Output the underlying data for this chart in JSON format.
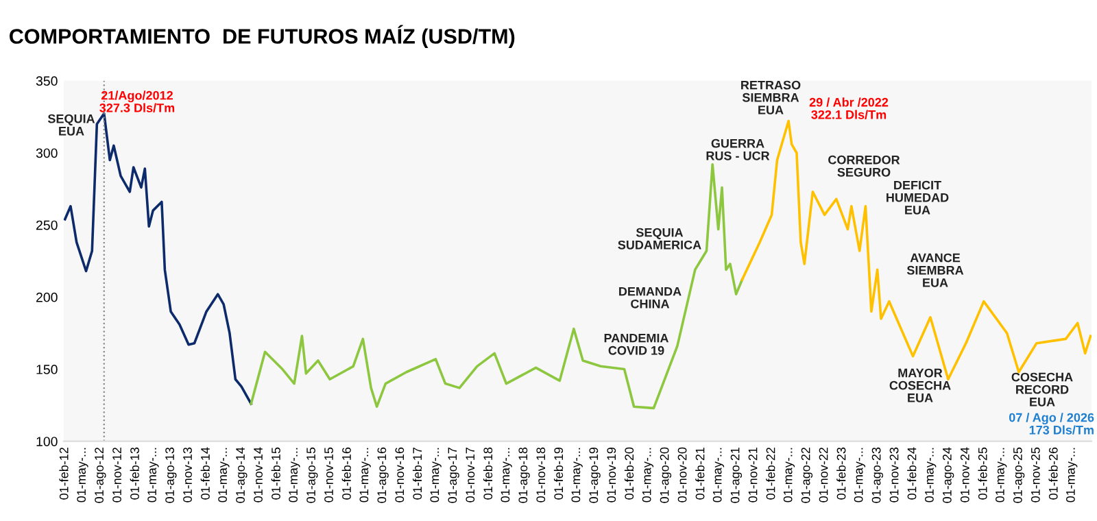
{
  "chart_data": {
    "type": "line",
    "title": "COMPORTAMIENTO  DE FUTUROS MAÍZ (USD/TM)",
    "series": [
      {
        "color": "#0d2a6b",
        "x": [
          "2012-02-01",
          "2012-03-01",
          "2012-04-01",
          "2012-05-20",
          "2012-06-20",
          "2012-07-15",
          "2012-08-21",
          "2012-09-20",
          "2012-10-10",
          "2012-11-15",
          "2013-01-01",
          "2013-01-20",
          "2013-03-01",
          "2013-03-20",
          "2013-04-10",
          "2013-05-01",
          "2013-06-15",
          "2013-07-01",
          "2013-08-01",
          "2013-09-15",
          "2013-11-01",
          "2013-12-01",
          "2014-02-01",
          "2014-04-01",
          "2014-05-01",
          "2014-06-01",
          "2014-07-01",
          "2014-08-01",
          "2014-09-20"
        ],
        "values": [
          254,
          263,
          238,
          218,
          232,
          320,
          327.3,
          295,
          305,
          284,
          273,
          290,
          276,
          289,
          249,
          260,
          266,
          219,
          190,
          181,
          167,
          168,
          190,
          202,
          195,
          175,
          143,
          138,
          126
        ]
      },
      {
        "color": "#8dc63f",
        "x": [
          "2014-09-20",
          "2014-12-01",
          "2015-03-01",
          "2015-05-01",
          "2015-06-10",
          "2015-07-01",
          "2015-09-01",
          "2015-11-01",
          "2016-03-01",
          "2016-04-20",
          "2016-06-01",
          "2016-07-01",
          "2016-08-15",
          "2016-12-01",
          "2017-05-01",
          "2017-06-20",
          "2017-09-01",
          "2017-12-01",
          "2018-03-01",
          "2018-05-01",
          "2018-10-01",
          "2019-02-01",
          "2019-04-15",
          "2019-06-01",
          "2019-09-01",
          "2020-01-01",
          "2020-02-20",
          "2020-06-01",
          "2020-10-01",
          "2021-01-01",
          "2021-03-01",
          "2021-04-01",
          "2021-05-01",
          "2021-05-20",
          "2021-06-10",
          "2021-07-01",
          "2021-08-01",
          "2021-09-01"
        ],
        "values": [
          126,
          162,
          150,
          140,
          173,
          147,
          156,
          143,
          152,
          171,
          137,
          124,
          140,
          148,
          157,
          140,
          137,
          152,
          161,
          140,
          151,
          142,
          178,
          156,
          152,
          150,
          124,
          123,
          166,
          219,
          232,
          292,
          247,
          276,
          219,
          223,
          202,
          212
        ]
      },
      {
        "color": "#ffc000",
        "x": [
          "2021-09-01",
          "2021-12-01",
          "2022-02-01",
          "2022-03-01",
          "2022-04-29",
          "2022-05-15",
          "2022-06-10",
          "2022-07-01",
          "2022-07-20",
          "2022-09-01",
          "2022-11-01",
          "2023-01-01",
          "2023-03-01",
          "2023-03-20",
          "2023-05-01",
          "2023-06-01",
          "2023-07-01",
          "2023-08-01",
          "2023-08-20",
          "2023-10-01",
          "2024-02-01",
          "2024-05-01",
          "2024-08-01",
          "2024-11-01",
          "2025-02-01",
          "2025-06-01",
          "2025-08-01",
          "2025-11-01",
          "2026-04-01",
          "2026-06-01",
          "2026-07-10",
          "2026-08-07"
        ],
        "values": [
          212,
          238,
          257,
          295,
          322.1,
          306,
          300,
          238,
          223,
          273,
          257,
          268,
          247,
          263,
          232,
          263,
          190,
          219,
          185,
          197,
          159,
          186,
          143,
          168,
          197,
          175,
          148,
          168,
          171,
          182,
          161,
          173
        ]
      }
    ],
    "xlim": [
      "2012-01-25",
      "2026-08-12"
    ],
    "xticks": [
      {
        "value": "2012-02-01",
        "label": "01-feb-12"
      },
      {
        "value": "2012-05-01",
        "label": "01-may-..."
      },
      {
        "value": "2012-08-01",
        "label": "01-ago-12"
      },
      {
        "value": "2012-11-01",
        "label": "01-nov-12"
      },
      {
        "value": "2013-02-01",
        "label": "01-feb-13"
      },
      {
        "value": "2013-05-01",
        "label": "01-may-..."
      },
      {
        "value": "2013-08-01",
        "label": "01-ago-13"
      },
      {
        "value": "2013-11-01",
        "label": "01-nov-13"
      },
      {
        "value": "2014-02-01",
        "label": "01-feb-14"
      },
      {
        "value": "2014-05-01",
        "label": "01-may-..."
      },
      {
        "value": "2014-08-01",
        "label": "01-ago-14"
      },
      {
        "value": "2014-11-01",
        "label": "01-nov-14"
      },
      {
        "value": "2015-02-01",
        "label": "01-feb-15"
      },
      {
        "value": "2015-05-01",
        "label": "01-may-..."
      },
      {
        "value": "2015-08-01",
        "label": "01-ago-15"
      },
      {
        "value": "2015-11-01",
        "label": "01-nov-15"
      },
      {
        "value": "2016-02-01",
        "label": "01-feb-16"
      },
      {
        "value": "2016-05-01",
        "label": "01-may-..."
      },
      {
        "value": "2016-08-01",
        "label": "01-ago-16"
      },
      {
        "value": "2016-11-01",
        "label": "01-nov-16"
      },
      {
        "value": "2017-02-01",
        "label": "01-feb-17"
      },
      {
        "value": "2017-05-01",
        "label": "01-may-..."
      },
      {
        "value": "2017-08-01",
        "label": "01-ago-17"
      },
      {
        "value": "2017-11-01",
        "label": "01-nov-17"
      },
      {
        "value": "2018-02-01",
        "label": "01-feb-18"
      },
      {
        "value": "2018-05-01",
        "label": "01-may-..."
      },
      {
        "value": "2018-08-01",
        "label": "01-ago-18"
      },
      {
        "value": "2018-11-01",
        "label": "01-nov-18"
      },
      {
        "value": "2019-02-01",
        "label": "01-feb-19"
      },
      {
        "value": "2019-05-01",
        "label": "01-may-..."
      },
      {
        "value": "2019-08-01",
        "label": "01-ago-19"
      },
      {
        "value": "2019-11-01",
        "label": "01-nov-19"
      },
      {
        "value": "2020-02-01",
        "label": "01-feb-20"
      },
      {
        "value": "2020-05-01",
        "label": "01-may-..."
      },
      {
        "value": "2020-08-01",
        "label": "01-ago-20"
      },
      {
        "value": "2020-11-01",
        "label": "01-nov-20"
      },
      {
        "value": "2021-02-01",
        "label": "01-feb-21"
      },
      {
        "value": "2021-05-01",
        "label": "01-may-..."
      },
      {
        "value": "2021-08-01",
        "label": "01-ago-21"
      },
      {
        "value": "2021-11-01",
        "label": "01-nov-21"
      },
      {
        "value": "2022-02-01",
        "label": "01-feb-22"
      },
      {
        "value": "2022-05-01",
        "label": "01-may-..."
      },
      {
        "value": "2022-08-01",
        "label": "01-ago-22"
      },
      {
        "value": "2022-11-01",
        "label": "01-nov-22"
      },
      {
        "value": "2023-02-01",
        "label": "01-feb-23"
      },
      {
        "value": "2023-05-01",
        "label": "01-may-..."
      },
      {
        "value": "2023-08-01",
        "label": "01-ago-23"
      },
      {
        "value": "2023-11-01",
        "label": "01-nov-23"
      },
      {
        "value": "2024-02-01",
        "label": "01-feb-24"
      },
      {
        "value": "2024-05-01",
        "label": "01-may-..."
      },
      {
        "value": "2024-08-01",
        "label": "01-ago-24"
      },
      {
        "value": "2024-11-01",
        "label": "01-nov-24"
      },
      {
        "value": "2025-02-01",
        "label": "01-feb-25"
      },
      {
        "value": "2025-05-01",
        "label": "01-may-..."
      },
      {
        "value": "2025-08-01",
        "label": "01-ago-25"
      },
      {
        "value": "2025-11-01",
        "label": "01-nov-25"
      },
      {
        "value": "2026-02-01",
        "label": "01-feb-26"
      },
      {
        "value": "2026-05-01",
        "label": "01-may-..."
      }
    ],
    "ylim": [
      100,
      350
    ],
    "yticks": [
      100,
      150,
      200,
      250,
      300,
      350
    ],
    "grid": false,
    "legend": false,
    "ref_lines": [
      {
        "axis": "x",
        "value": "2012-08-21",
        "color": "#888888",
        "line_style": "dotted"
      }
    ],
    "annotations": [
      "SEQUIA\nEUA",
      "21/Ago/2012\n327.3 Dls/Tm",
      "PANDEMIA\nCOVID 19",
      "DEMANDA\nCHINA",
      "SEQUIA\nSUDAMERICA",
      "GUERRA\nRUS - UCR",
      "RETRASO\nSIEMBRA\nEUA",
      "29 / Abr /2022\n322.1 Dls/Tm",
      "CORREDOR\nSEGURO",
      "DEFICIT\nHUMEDAD\nEUA",
      "AVANCE\nSIEMBRA\nEUA",
      "MAYOR\nCOSECHA\nEUA",
      "COSECHA\nRECORD\nEUA",
      "07 / Ago / 2026\n173 Dls/Tm"
    ]
  }
}
